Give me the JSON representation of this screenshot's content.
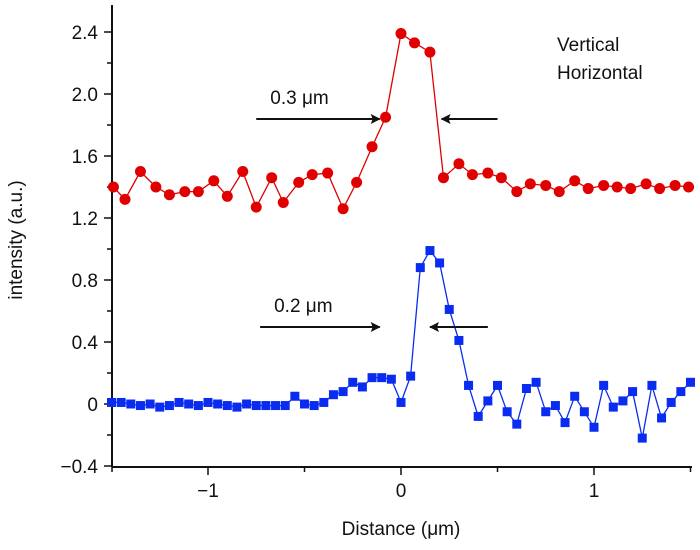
{
  "chart_data": {
    "type": "line",
    "title": "",
    "xlabel": "Distance (μm)",
    "ylabel": "intensity (a.u.)",
    "xlim": [
      -1.5,
      1.5
    ],
    "ylim": [
      -0.4,
      2.57
    ],
    "x_ticks": [
      -1,
      0,
      1
    ],
    "x_tick_labels": [
      "−1",
      "0",
      "1"
    ],
    "x_minor_ticks": [
      -1.5,
      -0.5,
      0.5,
      1.5
    ],
    "y_ticks": [
      -0.4,
      0,
      0.4,
      0.8,
      1.2,
      1.6,
      2.0,
      2.4
    ],
    "y_tick_labels": [
      "−0.4",
      "0",
      "0.4",
      "0.8",
      "1.2",
      "1.6",
      "2.0",
      "2.4"
    ],
    "y_minor_ticks": [
      -0.2,
      0.2,
      0.6,
      1.0,
      1.4,
      1.8,
      2.2
    ],
    "grid": false,
    "legend": {
      "placement": "top-right",
      "entries": [
        "Vertical",
        "Horizontal"
      ]
    },
    "series": [
      {
        "name": "Vertical",
        "color": "#e00000",
        "marker": "circle",
        "x": [
          -1.49,
          -1.43,
          -1.35,
          -1.27,
          -1.2,
          -1.12,
          -1.05,
          -0.97,
          -0.9,
          -0.82,
          -0.75,
          -0.67,
          -0.61,
          -0.53,
          -0.46,
          -0.38,
          -0.3,
          -0.23,
          -0.15,
          -0.08,
          0.0,
          0.07,
          0.15,
          0.22,
          0.3,
          0.37,
          0.45,
          0.52,
          0.6,
          0.67,
          0.75,
          0.82,
          0.9,
          0.97,
          1.05,
          1.12,
          1.19,
          1.27,
          1.34,
          1.42,
          1.49
        ],
        "values": [
          1.4,
          1.32,
          1.5,
          1.4,
          1.35,
          1.37,
          1.37,
          1.44,
          1.34,
          1.5,
          1.27,
          1.46,
          1.3,
          1.43,
          1.48,
          1.49,
          1.26,
          1.43,
          1.66,
          1.85,
          2.39,
          2.33,
          2.27,
          1.46,
          1.55,
          1.48,
          1.49,
          1.46,
          1.37,
          1.42,
          1.41,
          1.37,
          1.44,
          1.39,
          1.41,
          1.4,
          1.39,
          1.42,
          1.39,
          1.41,
          1.4
        ]
      },
      {
        "name": "Horizontal",
        "color": "#0a2cf0",
        "marker": "square",
        "x": [
          -1.5,
          -1.45,
          -1.4,
          -1.35,
          -1.3,
          -1.25,
          -1.2,
          -1.15,
          -1.1,
          -1.05,
          -1.0,
          -0.95,
          -0.9,
          -0.85,
          -0.8,
          -0.75,
          -0.7,
          -0.65,
          -0.6,
          -0.55,
          -0.5,
          -0.45,
          -0.4,
          -0.35,
          -0.3,
          -0.25,
          -0.2,
          -0.15,
          -0.1,
          -0.05,
          0.0,
          0.05,
          0.1,
          0.15,
          0.2,
          0.25,
          0.3,
          0.35,
          0.4,
          0.45,
          0.5,
          0.55,
          0.6,
          0.65,
          0.7,
          0.75,
          0.8,
          0.85,
          0.9,
          0.95,
          1.0,
          1.05,
          1.1,
          1.15,
          1.2,
          1.25,
          1.3,
          1.35,
          1.4,
          1.45,
          1.5
        ],
        "values": [
          0.01,
          0.01,
          0.0,
          -0.01,
          0.0,
          -0.02,
          -0.01,
          0.01,
          0.0,
          -0.01,
          0.01,
          0.0,
          -0.01,
          -0.02,
          0.0,
          -0.01,
          -0.01,
          -0.01,
          -0.01,
          0.05,
          0.0,
          -0.01,
          0.01,
          0.06,
          0.08,
          0.14,
          0.11,
          0.17,
          0.17,
          0.16,
          0.01,
          0.18,
          0.88,
          0.99,
          0.91,
          0.61,
          0.41,
          0.12,
          -0.08,
          0.02,
          0.12,
          -0.05,
          -0.13,
          0.1,
          0.14,
          -0.05,
          -0.01,
          -0.12,
          0.05,
          -0.05,
          -0.15,
          0.12,
          -0.02,
          0.02,
          0.08,
          -0.22,
          0.12,
          -0.09,
          0.01,
          0.08,
          0.14
        ]
      }
    ],
    "annotations": [
      {
        "text": "0.3 μm",
        "series": "Vertical",
        "fwhm": 0.3,
        "arrow_level": 1.85,
        "left_arrow_x": [
          -0.75,
          -0.1
        ],
        "right_arrow_x": [
          0.5,
          0.2
        ]
      },
      {
        "text": "0.2 μm",
        "series": "Horizontal",
        "fwhm": 0.2,
        "arrow_level": 0.5,
        "left_arrow_x": [
          -0.73,
          -0.1
        ],
        "right_arrow_x": [
          0.45,
          0.14
        ]
      }
    ]
  }
}
